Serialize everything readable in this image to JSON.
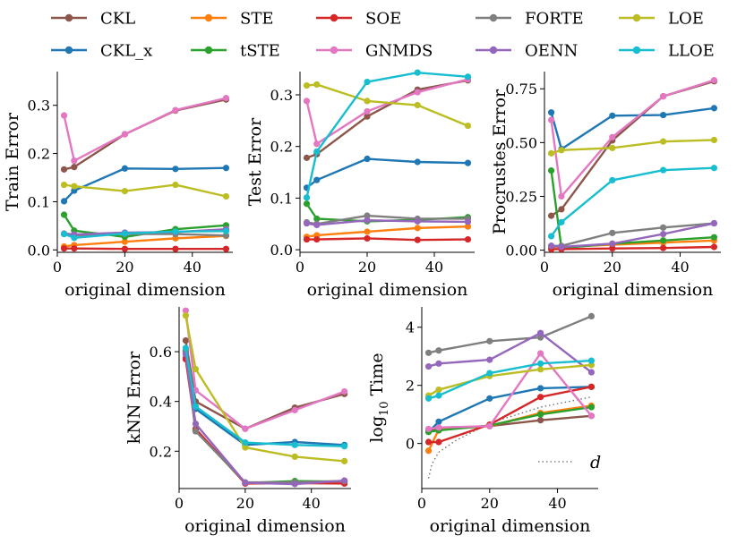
{
  "legend": {
    "entries": [
      {
        "name": "CKL",
        "color": "#8c564b"
      },
      {
        "name": "CKL_x",
        "color": "#1f77b4"
      },
      {
        "name": "STE",
        "color": "#ff7f0e"
      },
      {
        "name": "tSTE",
        "color": "#2ca02c"
      },
      {
        "name": "SOE",
        "color": "#d62728"
      },
      {
        "name": "GNMDS",
        "color": "#e377c2"
      },
      {
        "name": "FORTE",
        "color": "#7f7f7f"
      },
      {
        "name": "OENN",
        "color": "#9467bd"
      },
      {
        "name": "LOE",
        "color": "#bcbd22"
      },
      {
        "name": "LLOE",
        "color": "#17becf"
      }
    ]
  },
  "chart_data": [
    {
      "id": "train",
      "type": "line",
      "title": "",
      "xlabel": "original dimension",
      "ylabel": "Train Error",
      "xlim": [
        0,
        52
      ],
      "ylim": [
        -0.005,
        0.37
      ],
      "xticks": [
        0,
        20,
        40
      ],
      "yticks": [
        0.0,
        0.1,
        0.2,
        0.3
      ],
      "ytick_labels": [
        "0.0",
        "0.1",
        "0.2",
        "0.3"
      ],
      "x": [
        2,
        5,
        20,
        35,
        50
      ],
      "series": [
        {
          "name": "CKL",
          "values": [
            0.167,
            0.172,
            0.24,
            0.289,
            0.312
          ]
        },
        {
          "name": "CKL_x",
          "values": [
            0.101,
            0.123,
            0.169,
            0.168,
            0.17
          ]
        },
        {
          "name": "STE",
          "values": [
            0.007,
            0.01,
            0.017,
            0.024,
            0.029
          ]
        },
        {
          "name": "tSTE",
          "values": [
            0.073,
            0.04,
            0.027,
            0.043,
            0.051
          ]
        },
        {
          "name": "SOE",
          "values": [
            0.003,
            0.003,
            0.002,
            0.002,
            0.002
          ]
        },
        {
          "name": "GNMDS",
          "values": [
            0.279,
            0.185,
            0.24,
            0.29,
            0.315
          ]
        },
        {
          "name": "FORTE",
          "values": [
            0.033,
            0.03,
            0.033,
            0.033,
            0.03
          ]
        },
        {
          "name": "OENN",
          "values": [
            0.034,
            0.032,
            0.036,
            0.037,
            0.043
          ]
        },
        {
          "name": "LOE",
          "values": [
            0.135,
            0.132,
            0.122,
            0.135,
            0.111
          ]
        },
        {
          "name": "LLOE",
          "values": [
            0.033,
            0.025,
            0.034,
            0.038,
            0.039
          ]
        }
      ]
    },
    {
      "id": "test",
      "type": "line",
      "title": "",
      "xlabel": "original dimension",
      "ylabel": "Test Error",
      "xlim": [
        0,
        52
      ],
      "ylim": [
        -0.005,
        0.345
      ],
      "xticks": [
        0,
        20,
        40
      ],
      "yticks": [
        0.0,
        0.1,
        0.2,
        0.3
      ],
      "ytick_labels": [
        "0.0",
        "0.1",
        "0.2",
        "0.3"
      ],
      "x": [
        2,
        5,
        20,
        35,
        50
      ],
      "series": [
        {
          "name": "CKL",
          "values": [
            0.178,
            0.185,
            0.258,
            0.31,
            0.328
          ]
        },
        {
          "name": "CKL_x",
          "values": [
            0.12,
            0.135,
            0.176,
            0.17,
            0.168
          ]
        },
        {
          "name": "STE",
          "values": [
            0.025,
            0.028,
            0.035,
            0.042,
            0.045
          ]
        },
        {
          "name": "tSTE",
          "values": [
            0.089,
            0.06,
            0.055,
            0.058,
            0.063
          ]
        },
        {
          "name": "SOE",
          "values": [
            0.02,
            0.02,
            0.022,
            0.019,
            0.02
          ]
        },
        {
          "name": "GNMDS",
          "values": [
            0.288,
            0.205,
            0.268,
            0.305,
            0.33
          ]
        },
        {
          "name": "FORTE",
          "values": [
            0.053,
            0.05,
            0.066,
            0.06,
            0.06
          ]
        },
        {
          "name": "OENN",
          "values": [
            0.051,
            0.048,
            0.057,
            0.055,
            0.054
          ]
        },
        {
          "name": "LOE",
          "values": [
            0.318,
            0.32,
            0.288,
            0.28,
            0.24
          ]
        },
        {
          "name": "LLOE",
          "values": [
            0.101,
            0.19,
            0.325,
            0.343,
            0.335
          ]
        }
      ]
    },
    {
      "id": "procrustes",
      "type": "line",
      "title": "",
      "xlabel": "original dimension",
      "ylabel": "Procrustes Error",
      "xlim": [
        0,
        52
      ],
      "ylim": [
        -0.01,
        0.83
      ],
      "xticks": [
        0,
        20,
        40
      ],
      "yticks": [
        0.0,
        0.25,
        0.5,
        0.75
      ],
      "ytick_labels": [
        "0.00",
        "0.25",
        "0.50",
        "0.75"
      ],
      "x": [
        2,
        5,
        20,
        35,
        50
      ],
      "series": [
        {
          "name": "CKL",
          "values": [
            0.16,
            0.19,
            0.51,
            0.715,
            0.785
          ]
        },
        {
          "name": "CKL_x",
          "values": [
            0.64,
            0.47,
            0.625,
            0.628,
            0.66
          ]
        },
        {
          "name": "STE",
          "values": [
            0.015,
            0.015,
            0.025,
            0.035,
            0.045
          ]
        },
        {
          "name": "tSTE",
          "values": [
            0.37,
            0.01,
            0.03,
            0.045,
            0.06
          ]
        },
        {
          "name": "SOE",
          "values": [
            0.005,
            0.005,
            0.008,
            0.01,
            0.015
          ]
        },
        {
          "name": "GNMDS",
          "values": [
            0.605,
            0.25,
            0.525,
            0.715,
            0.79
          ]
        },
        {
          "name": "FORTE",
          "values": [
            0.02,
            0.02,
            0.08,
            0.105,
            0.125
          ]
        },
        {
          "name": "OENN",
          "values": [
            0.02,
            0.015,
            0.03,
            0.075,
            0.125
          ]
        },
        {
          "name": "LOE",
          "values": [
            0.45,
            0.465,
            0.475,
            0.505,
            0.512
          ]
        },
        {
          "name": "LLOE",
          "values": [
            0.065,
            0.13,
            0.325,
            0.372,
            0.382
          ]
        }
      ]
    },
    {
      "id": "knn",
      "type": "line",
      "title": "",
      "xlabel": "original dimension",
      "ylabel": "kNN Error",
      "xlim": [
        0,
        52
      ],
      "ylim": [
        0.05,
        0.78
      ],
      "xticks": [
        0,
        20,
        40
      ],
      "yticks": [
        0.2,
        0.4,
        0.6
      ],
      "ytick_labels": [
        "0.2",
        "0.4",
        "0.6"
      ],
      "x": [
        2,
        5,
        20,
        35,
        50
      ],
      "series": [
        {
          "name": "CKL",
          "values": [
            0.645,
            0.4,
            0.29,
            0.375,
            0.43
          ]
        },
        {
          "name": "CKL_x",
          "values": [
            0.575,
            0.37,
            0.225,
            0.237,
            0.225
          ]
        },
        {
          "name": "STE",
          "values": [
            0.605,
            0.285,
            0.072,
            0.075,
            0.08
          ]
        },
        {
          "name": "tSTE",
          "values": [
            0.6,
            0.283,
            0.072,
            0.08,
            0.078
          ]
        },
        {
          "name": "SOE",
          "values": [
            0.57,
            0.29,
            0.07,
            0.072,
            0.07
          ]
        },
        {
          "name": "GNMDS",
          "values": [
            0.765,
            0.445,
            0.29,
            0.365,
            0.44
          ]
        },
        {
          "name": "FORTE",
          "values": [
            0.6,
            0.28,
            0.075,
            0.075,
            0.08
          ]
        },
        {
          "name": "OENN",
          "values": [
            0.59,
            0.31,
            0.073,
            0.068,
            0.082
          ]
        },
        {
          "name": "LOE",
          "values": [
            0.745,
            0.53,
            0.215,
            0.178,
            0.16
          ]
        },
        {
          "name": "LLOE",
          "values": [
            0.615,
            0.38,
            0.235,
            0.225,
            0.22
          ]
        }
      ]
    },
    {
      "id": "time",
      "type": "line",
      "title": "",
      "xlabel": "original dimension",
      "ylabel": "log",
      "ylabel_sub": "10",
      "ylabel_suffix": " Time",
      "xlim": [
        0,
        52
      ],
      "ylim": [
        -1.55,
        4.7
      ],
      "xticks": [
        0,
        20,
        40
      ],
      "yticks": [
        0,
        2,
        4
      ],
      "ytick_labels": [
        "0",
        "2",
        "4"
      ],
      "x": [
        2,
        5,
        20,
        35,
        50
      ],
      "series": [
        {
          "name": "CKL",
          "values": [
            0.45,
            0.48,
            0.6,
            0.8,
            0.95
          ]
        },
        {
          "name": "CKL_x",
          "values": [
            0.4,
            0.75,
            1.55,
            1.9,
            1.95
          ]
        },
        {
          "name": "STE",
          "values": [
            -0.25,
            0.48,
            0.6,
            1.05,
            1.3
          ]
        },
        {
          "name": "tSTE",
          "values": [
            0.4,
            0.45,
            0.62,
            1.0,
            1.25
          ]
        },
        {
          "name": "SOE",
          "values": [
            0.05,
            0.05,
            0.65,
            1.6,
            1.95
          ]
        },
        {
          "name": "GNMDS",
          "values": [
            0.5,
            0.55,
            0.6,
            3.1,
            0.95
          ]
        },
        {
          "name": "FORTE",
          "values": [
            3.12,
            3.2,
            3.52,
            3.65,
            4.38
          ]
        },
        {
          "name": "OENN",
          "values": [
            2.65,
            2.75,
            2.88,
            3.8,
            2.45
          ]
        },
        {
          "name": "LOE",
          "values": [
            1.65,
            1.85,
            2.32,
            2.55,
            2.7
          ]
        },
        {
          "name": "LLOE",
          "values": [
            1.55,
            1.65,
            2.42,
            2.75,
            2.85
          ]
        }
      ],
      "reference": {
        "name": "d",
        "style": "dotted",
        "color": "#666666",
        "x": [
          2,
          3,
          5,
          10,
          20,
          35,
          50
        ],
        "values": [
          -1.2,
          -0.7,
          -0.3,
          0.1,
          0.7,
          1.25,
          1.6
        ]
      }
    }
  ]
}
